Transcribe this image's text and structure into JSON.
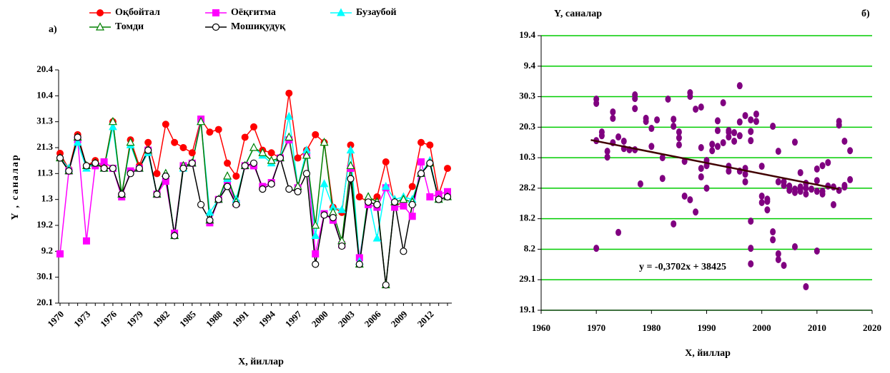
{
  "chart_data": [
    {
      "type": "line",
      "panel_label": "а)",
      "xlabel": "X, йиллар",
      "ylabel": "Y , саналар",
      "categories": [
        "1970",
        null,
        null,
        "1973",
        null,
        null,
        "1976",
        null,
        null,
        "1979",
        null,
        null,
        "1982",
        null,
        null,
        "1985",
        null,
        null,
        "1988",
        null,
        null,
        "1991",
        null,
        null,
        "1994",
        null,
        null,
        "1997",
        null,
        null,
        "2000",
        null,
        null,
        "2003",
        null,
        null,
        "2006",
        null,
        null,
        "2009",
        null,
        null,
        "2012",
        null,
        null
      ],
      "ylim": [
        0,
        9
      ],
      "yticks": [
        {
          "value": 0,
          "label": "20.1"
        },
        {
          "value": 1,
          "label": "30.1"
        },
        {
          "value": 2,
          "label": "9.2"
        },
        {
          "value": 3,
          "label": "19.2"
        },
        {
          "value": 4,
          "label": "1.3"
        },
        {
          "value": 5,
          "label": "11.3"
        },
        {
          "value": 6,
          "label": "21.3"
        },
        {
          "value": 7,
          "label": "31.3"
        },
        {
          "value": 8,
          "label": "10.4"
        },
        {
          "value": 9,
          "label": "20.4"
        }
      ],
      "series": [
        {
          "name": "Оқбойтал",
          "color": "#ff0000",
          "marker": "circle",
          "values": [
            5.78,
            5.17,
            6.5,
            5.3,
            5.5,
            5.25,
            7.0,
            4.1,
            6.3,
            5.3,
            6.2,
            5.0,
            6.9,
            6.2,
            6.0,
            5.8,
            7.1,
            6.6,
            6.7,
            5.4,
            4.9,
            6.4,
            6.8,
            5.9,
            5.8,
            5.6,
            8.1,
            5.6,
            5.9,
            6.5,
            6.2,
            3.7,
            3.5,
            6.1,
            4.1,
            3.9,
            4.1,
            5.45,
            3.8,
            3.85,
            4.5,
            6.2,
            6.1,
            4.2,
            5.2
          ]
        },
        {
          "name": "Оёқғитма",
          "color": "#ff00ff",
          "marker": "square",
          "values": [
            1.9,
            5.1,
            6.3,
            2.4,
            5.3,
            5.45,
            5.2,
            4.1,
            5.1,
            5.2,
            5.9,
            4.2,
            4.7,
            2.7,
            5.3,
            5.4,
            7.1,
            3.1,
            4.0,
            4.7,
            3.85,
            5.3,
            5.3,
            4.5,
            4.65,
            5.6,
            6.3,
            4.45,
            5.75,
            1.9,
            3.45,
            3.2,
            2.25,
            5.2,
            1.75,
            3.8,
            3.7,
            4.45,
            3.7,
            3.75,
            3.35,
            5.45,
            4.1,
            4.2,
            4.3
          ]
        },
        {
          "name": "Бузаубой",
          "color": "#00ffff",
          "marker": "triangle",
          "values": [
            5.6,
            5.2,
            6.2,
            5.2,
            5.4,
            5.2,
            6.8,
            4.2,
            6.1,
            5.2,
            5.8,
            4.2,
            5.0,
            2.6,
            5.2,
            5.4,
            7.0,
            3.5,
            4.0,
            4.8,
            4.0,
            5.3,
            6.0,
            5.7,
            5.4,
            5.6,
            7.2,
            4.5,
            5.9,
            2.6,
            4.6,
            3.7,
            3.6,
            5.9,
            1.6,
            4.1,
            2.5,
            4.5,
            4.0,
            4.1,
            4.0,
            5.0,
            5.5,
            4.0,
            4.1
          ]
        },
        {
          "name": "Томди",
          "color": "#008000",
          "marker": "triangle-open",
          "values": [
            5.6,
            5.1,
            6.4,
            5.3,
            5.4,
            5.2,
            7.0,
            4.2,
            6.2,
            5.2,
            5.9,
            4.2,
            5.0,
            2.6,
            5.3,
            5.4,
            7.0,
            3.2,
            4.0,
            4.9,
            3.9,
            5.3,
            6.0,
            5.8,
            5.5,
            5.6,
            6.4,
            4.5,
            5.7,
            3.0,
            6.2,
            3.5,
            2.4,
            5.3,
            1.5,
            4.1,
            3.9,
            0.7,
            3.9,
            4.0,
            3.9,
            5.0,
            5.4,
            4.0,
            4.1
          ]
        },
        {
          "name": "Мошиқудуқ",
          "color": "#000000",
          "marker": "circle-open",
          "values": [
            5.6,
            5.1,
            6.4,
            5.3,
            5.4,
            5.2,
            5.2,
            4.2,
            5.0,
            5.2,
            5.9,
            4.2,
            4.9,
            2.6,
            5.2,
            5.4,
            3.8,
            3.2,
            4.0,
            4.5,
            3.8,
            5.3,
            5.4,
            4.4,
            4.6,
            5.6,
            4.4,
            4.3,
            5.0,
            1.5,
            3.4,
            3.3,
            2.2,
            4.8,
            1.5,
            3.9,
            3.8,
            0.7,
            3.9,
            2.0,
            3.8,
            5.0,
            5.4,
            4.0,
            4.1
          ]
        }
      ]
    },
    {
      "type": "scatter",
      "panel_label": "б)",
      "xlabel": "X, йиллар",
      "ylabel": "Y, саналар",
      "color": "#800080",
      "grid": true,
      "grid_color": "#00cc00",
      "annotation": "y = -0,3702x + 38425",
      "xlim": [
        1960,
        2020
      ],
      "xticks": [
        1960,
        1970,
        1980,
        1990,
        2000,
        2010,
        2020
      ],
      "ylim": [
        0,
        9
      ],
      "yticks": [
        {
          "value": 0,
          "label": "19.1"
        },
        {
          "value": 1,
          "label": "29.1"
        },
        {
          "value": 2,
          "label": "8.2"
        },
        {
          "value": 3,
          "label": "18.2"
        },
        {
          "value": 4,
          "label": "28.2"
        },
        {
          "value": 5,
          "label": "10.3"
        },
        {
          "value": 6,
          "label": "20.3"
        },
        {
          "value": 7,
          "label": "30.3"
        },
        {
          "value": 8,
          "label": "9.4"
        },
        {
          "value": 9,
          "label": "19.4"
        }
      ],
      "x": [
        1970,
        1970,
        1970,
        1970,
        1971,
        1971,
        1972,
        1972,
        1973,
        1973,
        1973,
        1974,
        1974,
        1975,
        1975,
        1976,
        1977,
        1977,
        1977,
        1977,
        1978,
        1979,
        1979,
        1980,
        1980,
        1981,
        1982,
        1982,
        1983,
        1984,
        1984,
        1984,
        1985,
        1985,
        1985,
        1986,
        1986,
        1987,
        1987,
        1987,
        1988,
        1988,
        1989,
        1989,
        1989,
        1989,
        1990,
        1990,
        1990,
        1991,
        1991,
        1992,
        1992,
        1992,
        1993,
        1993,
        1994,
        1994,
        1994,
        1994,
        1994,
        1995,
        1995,
        1996,
        1996,
        1996,
        1996,
        1997,
        1997,
        1997,
        1997,
        1998,
        1998,
        1998,
        1998,
        1998,
        1998,
        1999,
        1999,
        2000,
        2000,
        2000,
        2001,
        2001,
        2001,
        2002,
        2002,
        2002,
        2003,
        2003,
        2003,
        2003,
        2004,
        2004,
        2004,
        2005,
        2005,
        2006,
        2006,
        2006,
        2006,
        2007,
        2008,
        2007,
        2007,
        2007,
        2008,
        2008,
        2008,
        2009,
        2010,
        2010,
        2010,
        2011,
        2011,
        2011,
        2012,
        2010,
        2012,
        2013,
        2013,
        2014,
        2014,
        2014,
        2015,
        2015,
        2015,
        2016,
        2016
      ],
      "y": [
        6.92,
        6.78,
        5.56,
        2.03,
        5.84,
        5.72,
        5.21,
        5.02,
        6.5,
        6.29,
        5.49,
        2.55,
        5.68,
        5.3,
        5.54,
        5.26,
        7.06,
        6.94,
        6.61,
        5.26,
        4.14,
        6.29,
        6.19,
        5.37,
        5.96,
        6.24,
        5.0,
        4.32,
        6.92,
        2.83,
        6.26,
        6.03,
        5.42,
        5.65,
        5.84,
        4.88,
        3.74,
        7.13,
        7.01,
        3.62,
        3.22,
        6.59,
        6.66,
        5.33,
        4.65,
        4.37,
        4.0,
        4.74,
        4.91,
        5.44,
        5.23,
        6.21,
        5.37,
        5.89,
        6.8,
        5.49,
        4.56,
        4.72,
        5.89,
        5.68,
        5.84,
        5.54,
        5.82,
        5.72,
        7.36,
        6.17,
        4.56,
        4.46,
        4.21,
        6.38,
        4.65,
        5.56,
        5.86,
        6.24,
        2.03,
        1.52,
        2.92,
        6.43,
        6.19,
        4.72,
        3.53,
        3.74,
        3.29,
        3.64,
        3.57,
        2.57,
        2.31,
        6.03,
        5.21,
        4.21,
        1.85,
        1.66,
        1.47,
        4.21,
        4.09,
        4.07,
        3.93,
        3.97,
        2.08,
        3.86,
        5.51,
        4.51,
        0.77,
        3.9,
        4.04,
        4.0,
        4.16,
        3.81,
        4.0,
        3.97,
        3.9,
        4.25,
        4.63,
        4.74,
        3.9,
        3.81,
        4.07,
        1.94,
        4.84,
        4.04,
        3.46,
        6.19,
        3.93,
        6.07,
        5.54,
        4.04,
        4.09,
        4.28,
        5.23
      ],
      "trendline": {
        "color": "#400000",
        "x": [
          1969,
          2014
        ],
        "y": [
          5.58,
          3.97
        ]
      }
    }
  ]
}
